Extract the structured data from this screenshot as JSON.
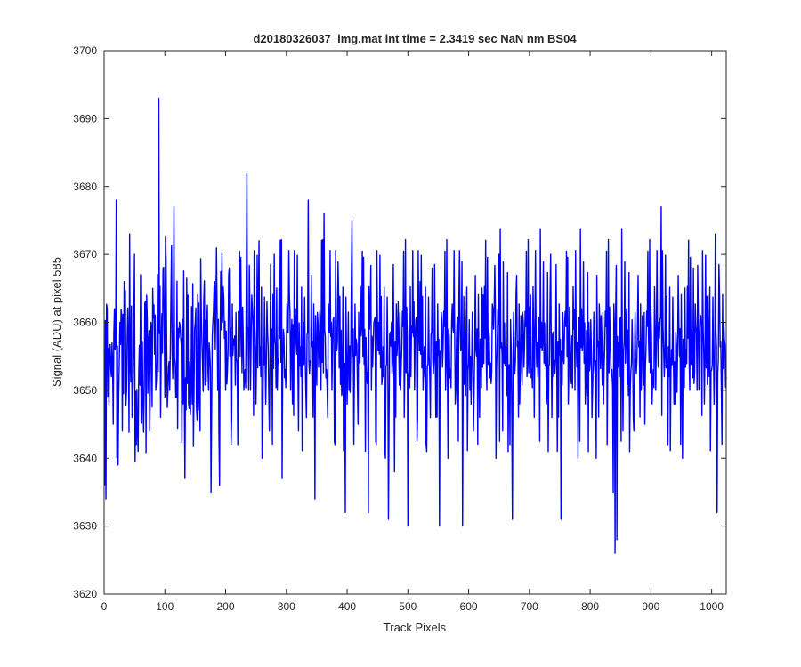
{
  "chart_data": {
    "type": "line",
    "title": "d20180326037_img.mat int time = 2.3419 sec  NaN nm BS04",
    "xlabel": "Track Pixels",
    "ylabel": "Signal (ADU) at pixel 585",
    "xlim": [
      0,
      1024
    ],
    "ylim": [
      3620,
      3700
    ],
    "xticks": [
      0,
      100,
      200,
      300,
      400,
      500,
      600,
      700,
      800,
      900,
      1000
    ],
    "yticks": [
      3620,
      3630,
      3640,
      3650,
      3660,
      3670,
      3680,
      3690,
      3700
    ],
    "grid": false,
    "legend": "none",
    "series_color": "#0000ff",
    "series": [
      {
        "x_start": 1,
        "x_step": 1,
        "noise_sample": {
          "baseline": 3655,
          "amplitude": 7,
          "seed": 37
        },
        "points": [
          [
            1,
            3636
          ],
          [
            3,
            3634
          ],
          [
            5,
            3662
          ],
          [
            8,
            3648
          ],
          [
            12,
            3652
          ],
          [
            15,
            3645
          ],
          [
            18,
            3656
          ],
          [
            20,
            3678
          ],
          [
            23,
            3639
          ],
          [
            26,
            3660
          ],
          [
            30,
            3644
          ],
          [
            33,
            3666
          ],
          [
            37,
            3650
          ],
          [
            42,
            3673
          ],
          [
            46,
            3646
          ],
          [
            50,
            3670
          ],
          [
            53,
            3642
          ],
          [
            56,
            3641
          ],
          [
            60,
            3667
          ],
          [
            64,
            3648
          ],
          [
            70,
            3664
          ],
          [
            75,
            3644
          ],
          [
            80,
            3665
          ],
          [
            85,
            3650
          ],
          [
            90,
            3693
          ],
          [
            93,
            3646
          ],
          [
            97,
            3668
          ],
          [
            100,
            3649
          ],
          [
            103,
            3657
          ],
          [
            110,
            3664
          ],
          [
            115,
            3677
          ],
          [
            118,
            3649
          ],
          [
            124,
            3660
          ],
          [
            130,
            3648
          ],
          [
            138,
            3664
          ],
          [
            145,
            3648
          ],
          [
            150,
            3660
          ],
          [
            158,
            3644
          ],
          [
            162,
            3654
          ],
          [
            172,
            3650
          ],
          [
            176,
            3635
          ],
          [
            182,
            3666
          ],
          [
            190,
            3636
          ],
          [
            195,
            3660
          ],
          [
            200,
            3650
          ],
          [
            206,
            3668
          ],
          [
            210,
            3646
          ],
          [
            215,
            3658
          ],
          [
            220,
            3642
          ],
          [
            226,
            3660
          ],
          [
            230,
            3650
          ],
          [
            235,
            3682
          ],
          [
            238,
            3650
          ],
          [
            243,
            3664
          ],
          [
            250,
            3648
          ],
          [
            255,
            3672
          ],
          [
            260,
            3640
          ],
          [
            268,
            3663
          ],
          [
            272,
            3644
          ],
          [
            280,
            3670
          ],
          [
            285,
            3650
          ],
          [
            293,
            3637
          ],
          [
            300,
            3656
          ],
          [
            305,
            3664
          ],
          [
            310,
            3648
          ],
          [
            315,
            3662
          ],
          [
            320,
            3644
          ],
          [
            328,
            3660
          ],
          [
            332,
            3650
          ],
          [
            336,
            3678
          ],
          [
            340,
            3654
          ],
          [
            347,
            3634
          ],
          [
            352,
            3660
          ],
          [
            357,
            3650
          ],
          [
            362,
            3676
          ],
          [
            368,
            3646
          ],
          [
            374,
            3660
          ],
          [
            380,
            3642
          ],
          [
            386,
            3664
          ],
          [
            392,
            3650
          ],
          [
            397,
            3632
          ],
          [
            403,
            3650
          ],
          [
            408,
            3675
          ],
          [
            412,
            3652
          ],
          [
            418,
            3645
          ],
          [
            423,
            3658
          ],
          [
            430,
            3641
          ],
          [
            435,
            3632
          ],
          [
            440,
            3650
          ],
          [
            444,
            3660
          ],
          [
            448,
            3642
          ],
          [
            452,
            3660
          ],
          [
            458,
            3652
          ],
          [
            463,
            3640
          ],
          [
            468,
            3631
          ],
          [
            473,
            3660
          ],
          [
            478,
            3638
          ],
          [
            484,
            3663
          ],
          [
            488,
            3650
          ],
          [
            494,
            3646
          ],
          [
            500,
            3630
          ],
          [
            505,
            3652
          ],
          [
            510,
            3663
          ],
          [
            516,
            3646
          ],
          [
            520,
            3666
          ],
          [
            525,
            3650
          ],
          [
            530,
            3642
          ],
          [
            536,
            3652
          ],
          [
            540,
            3668
          ],
          [
            546,
            3646
          ],
          [
            552,
            3630
          ],
          [
            556,
            3660
          ],
          [
            562,
            3650
          ],
          [
            566,
            3640
          ],
          [
            572,
            3660
          ],
          [
            578,
            3648
          ],
          [
            584,
            3664
          ],
          [
            590,
            3630
          ],
          [
            596,
            3660
          ],
          [
            602,
            3650
          ],
          [
            608,
            3644
          ],
          [
            612,
            3656
          ],
          [
            618,
            3646
          ],
          [
            624,
            3664
          ],
          [
            630,
            3650
          ],
          [
            636,
            3654
          ],
          [
            640,
            3662
          ],
          [
            645,
            3640
          ],
          [
            650,
            3670
          ],
          [
            656,
            3644
          ],
          [
            662,
            3656
          ],
          [
            668,
            3642
          ],
          [
            672,
            3631
          ],
          [
            678,
            3664
          ],
          [
            684,
            3648
          ],
          [
            690,
            3660
          ],
          [
            696,
            3652
          ],
          [
            702,
            3664
          ],
          [
            708,
            3646
          ],
          [
            714,
            3652
          ],
          [
            720,
            3660
          ],
          [
            728,
            3648
          ],
          [
            735,
            3670
          ],
          [
            740,
            3652
          ],
          [
            746,
            3641
          ],
          [
            752,
            3631
          ],
          [
            758,
            3660
          ],
          [
            764,
            3648
          ],
          [
            770,
            3658
          ],
          [
            775,
            3650
          ],
          [
            780,
            3640
          ],
          [
            786,
            3662
          ],
          [
            792,
            3648
          ],
          [
            798,
            3660
          ],
          [
            804,
            3650
          ],
          [
            810,
            3640
          ],
          [
            816,
            3660
          ],
          [
            822,
            3648
          ],
          [
            828,
            3642
          ],
          [
            834,
            3654
          ],
          [
            838,
            3635
          ],
          [
            841,
            3626
          ],
          [
            844,
            3628
          ],
          [
            848,
            3652
          ],
          [
            854,
            3644
          ],
          [
            860,
            3662
          ],
          [
            866,
            3650
          ],
          [
            872,
            3644
          ],
          [
            878,
            3660
          ],
          [
            884,
            3650
          ],
          [
            890,
            3645
          ],
          [
            896,
            3658
          ],
          [
            902,
            3648
          ],
          [
            908,
            3650
          ],
          [
            913,
            3660
          ],
          [
            917,
            3677
          ],
          [
            922,
            3652
          ],
          [
            928,
            3642
          ],
          [
            934,
            3656
          ],
          [
            940,
            3648
          ],
          [
            946,
            3660
          ],
          [
            952,
            3640
          ],
          [
            958,
            3656
          ],
          [
            964,
            3650
          ],
          [
            970,
            3668
          ],
          [
            976,
            3650
          ],
          [
            982,
            3661
          ],
          [
            988,
            3648
          ],
          [
            994,
            3664
          ],
          [
            1000,
            3653
          ],
          [
            1006,
            3673
          ],
          [
            1009,
            3632
          ],
          [
            1013,
            3664
          ],
          [
            1016,
            3650
          ],
          [
            1020,
            3660
          ],
          [
            1024,
            3652
          ]
        ]
      }
    ]
  }
}
